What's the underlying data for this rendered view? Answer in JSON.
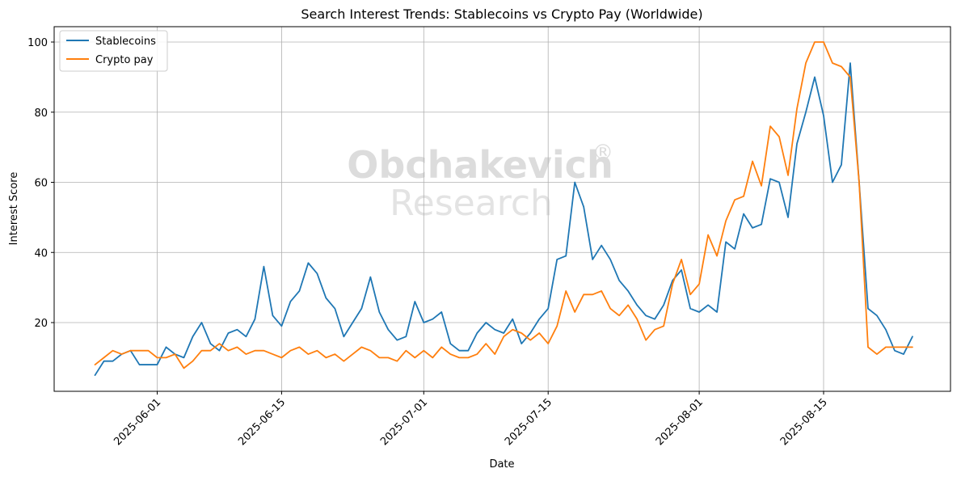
{
  "chart_data": {
    "type": "line",
    "title": "Search Interest Trends: Stablecoins vs Crypto Pay (Worldwide)",
    "xlabel": "Date",
    "ylabel": "Interest Score",
    "start_date": "2025-05-25",
    "x_ticks": [
      "2025-06-01",
      "2025-06-15",
      "2025-07-01",
      "2025-07-15",
      "2025-08-01",
      "2025-08-15"
    ],
    "y_ticks": [
      20,
      40,
      60,
      80,
      100
    ],
    "ylim": [
      0,
      105
    ],
    "grid": true,
    "legend_position": "top-left",
    "watermark": {
      "line1": "Obchakevich",
      "mark": "®",
      "line2": "Research"
    },
    "series": [
      {
        "name": "Stablecoins",
        "color": "#1f77b4",
        "values": [
          5,
          9,
          9,
          11,
          12,
          8,
          8,
          8,
          13,
          11,
          10,
          16,
          20,
          14,
          12,
          17,
          18,
          16,
          21,
          36,
          22,
          19,
          26,
          29,
          37,
          34,
          27,
          24,
          16,
          20,
          24,
          33,
          23,
          18,
          15,
          16,
          26,
          20,
          21,
          23,
          14,
          12,
          12,
          17,
          20,
          18,
          17,
          21,
          14,
          17,
          21,
          24,
          38,
          39,
          60,
          53,
          38,
          42,
          38,
          32,
          29,
          25,
          22,
          21,
          25,
          32,
          35,
          24,
          23,
          25,
          23,
          43,
          41,
          51,
          47,
          48,
          61,
          60,
          50,
          71,
          80,
          90,
          79,
          60,
          65,
          94,
          60,
          24,
          22,
          18,
          12,
          11,
          16
        ]
      },
      {
        "name": "Crypto pay",
        "color": "#ff7f0e",
        "values": [
          8,
          10,
          12,
          11,
          12,
          12,
          12,
          10,
          10,
          11,
          7,
          9,
          12,
          12,
          14,
          12,
          13,
          11,
          12,
          12,
          11,
          10,
          12,
          13,
          11,
          12,
          10,
          11,
          9,
          11,
          13,
          12,
          10,
          10,
          9,
          12,
          10,
          12,
          10,
          13,
          11,
          10,
          10,
          11,
          14,
          11,
          16,
          18,
          17,
          15,
          17,
          14,
          19,
          29,
          23,
          28,
          28,
          29,
          24,
          22,
          25,
          21,
          15,
          18,
          19,
          31,
          38,
          28,
          31,
          45,
          39,
          49,
          55,
          56,
          66,
          59,
          76,
          73,
          62,
          81,
          94,
          100,
          100,
          94,
          93,
          90,
          60,
          13,
          11,
          13,
          13,
          13,
          13
        ]
      }
    ]
  }
}
